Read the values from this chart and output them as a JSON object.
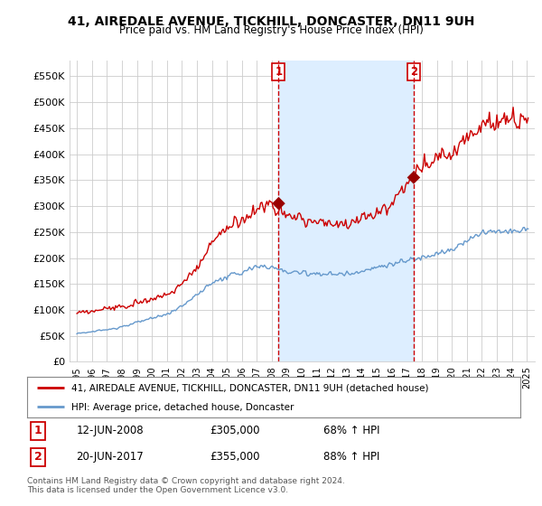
{
  "title": "41, AIREDALE AVENUE, TICKHILL, DONCASTER, DN11 9UH",
  "subtitle": "Price paid vs. HM Land Registry's House Price Index (HPI)",
  "legend_line1": "41, AIREDALE AVENUE, TICKHILL, DONCASTER, DN11 9UH (detached house)",
  "legend_line2": "HPI: Average price, detached house, Doncaster",
  "footnote": "Contains HM Land Registry data © Crown copyright and database right 2024.\nThis data is licensed under the Open Government Licence v3.0.",
  "sale1_label": "1",
  "sale1_date": "12-JUN-2008",
  "sale1_price": "£305,000",
  "sale1_hpi": "68% ↑ HPI",
  "sale2_label": "2",
  "sale2_date": "20-JUN-2017",
  "sale2_price": "£355,000",
  "sale2_hpi": "88% ↑ HPI",
  "ylim_min": 0,
  "ylim_max": 580000,
  "yticks": [
    0,
    50000,
    100000,
    150000,
    200000,
    250000,
    300000,
    350000,
    400000,
    450000,
    500000,
    550000
  ],
  "ytick_labels": [
    "£0",
    "£50K",
    "£100K",
    "£150K",
    "£200K",
    "£250K",
    "£300K",
    "£350K",
    "£400K",
    "£450K",
    "£500K",
    "£550K"
  ],
  "hpi_color": "#6699cc",
  "price_color": "#cc0000",
  "sale_marker_color": "#990000",
  "vline_color": "#cc0000",
  "shade_color": "#ddeeff",
  "plot_bg_color": "#ffffff",
  "grid_color": "#cccccc",
  "sale1_x": 2008.45,
  "sale1_y": 305000,
  "sale2_x": 2017.45,
  "sale2_y": 355000,
  "xlim_min": 1994.5,
  "xlim_max": 2025.5
}
